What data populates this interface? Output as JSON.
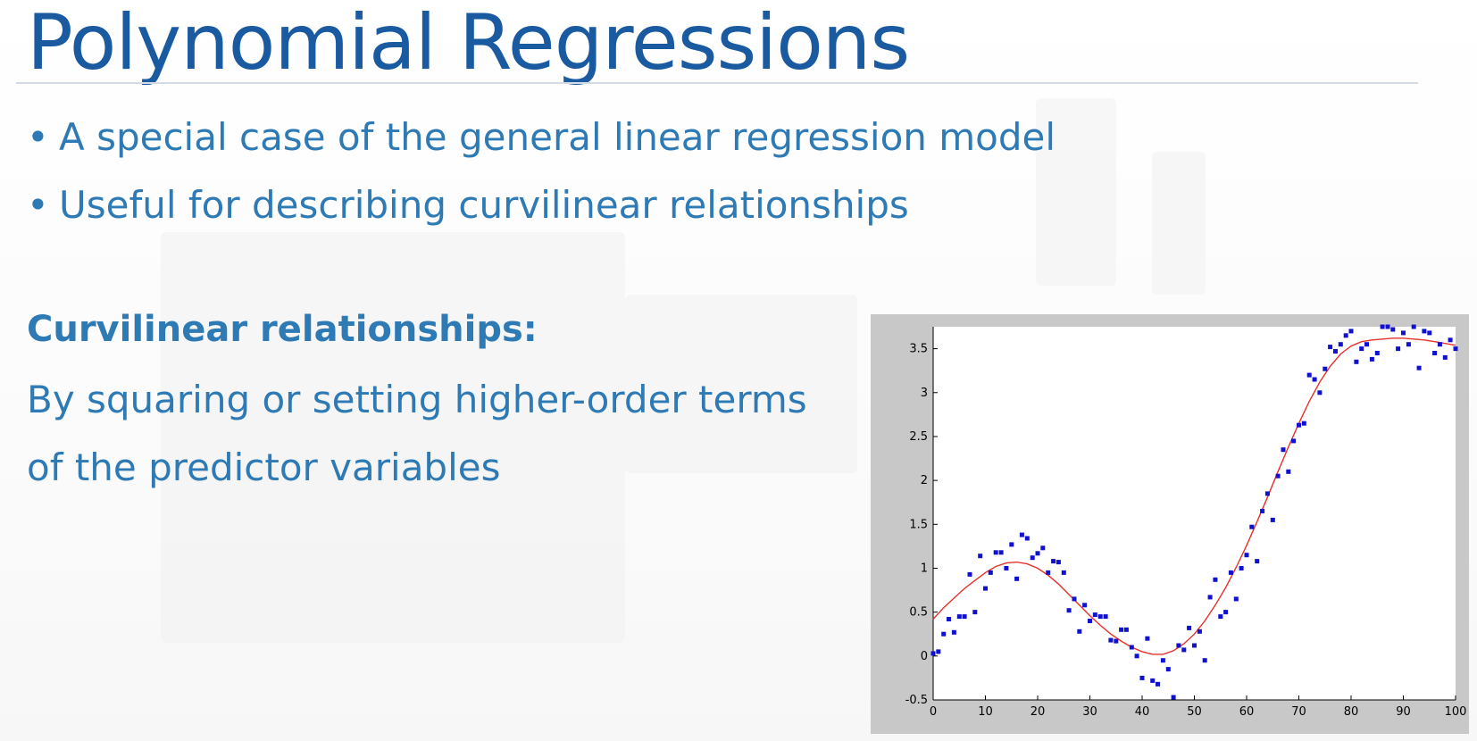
{
  "slide": {
    "title": "Polynomial Regressions",
    "bullets": [
      "A special case of the general linear regression model",
      "Useful for describing curvilinear relationships"
    ],
    "subheading": "Curvilinear relationships:",
    "body": "By squaring or setting higher-order terms of the predictor variables"
  },
  "colors": {
    "title": "#1a5aa0",
    "text": "#2d7ab5",
    "points": "#1010d0",
    "fit_line": "#e8302a",
    "plot_frame": "#c8c8c8"
  },
  "chart_data": {
    "type": "scatter",
    "title": "",
    "xlabel": "",
    "ylabel": "",
    "xlim": [
      0,
      100
    ],
    "ylim": [
      -0.5,
      3.75
    ],
    "x_ticks": [
      0,
      10,
      20,
      30,
      40,
      50,
      60,
      70,
      80,
      90,
      100
    ],
    "y_ticks": [
      -0.5,
      0,
      0.5,
      1,
      1.5,
      2,
      2.5,
      3,
      3.5
    ],
    "x_tick_labels": [
      "0",
      "10",
      "20",
      "30",
      "40",
      "50",
      "60",
      "70",
      "80",
      "90",
      "100"
    ],
    "y_tick_labels": [
      "-0.5",
      "0",
      "0.5",
      "1",
      "1.5",
      "2",
      "2.5",
      "3",
      "3.5"
    ],
    "grid": false,
    "series": [
      {
        "kind": "points",
        "color": "#1010d0",
        "x": [
          0,
          1,
          2,
          3,
          4,
          5,
          6,
          7,
          8,
          9,
          10,
          11,
          12,
          13,
          14,
          15,
          16,
          17,
          18,
          19,
          20,
          21,
          22,
          23,
          24,
          25,
          26,
          27,
          28,
          29,
          30,
          31,
          32,
          33,
          34,
          35,
          36,
          37,
          38,
          39,
          40,
          41,
          42,
          43,
          44,
          45,
          46,
          47,
          48,
          49,
          50,
          51,
          52,
          53,
          54,
          55,
          56,
          57,
          58,
          59,
          60,
          61,
          62,
          63,
          64,
          65,
          66,
          67,
          68,
          69,
          70,
          71,
          72,
          73,
          74,
          75,
          76,
          77,
          78,
          79,
          80,
          81,
          82,
          83,
          84,
          85,
          86,
          87,
          88,
          89,
          90,
          91,
          92,
          93,
          94,
          95,
          96,
          97,
          98,
          99,
          100
        ],
        "y": [
          0.03,
          0.05,
          0.25,
          0.42,
          0.27,
          0.45,
          0.45,
          0.93,
          0.5,
          1.14,
          0.77,
          0.95,
          1.18,
          1.18,
          1.0,
          1.27,
          0.88,
          1.38,
          1.34,
          1.12,
          1.17,
          1.23,
          0.95,
          1.08,
          1.07,
          0.95,
          0.52,
          0.65,
          0.28,
          0.58,
          0.4,
          0.47,
          0.45,
          0.45,
          0.18,
          0.17,
          0.3,
          0.3,
          0.1,
          0.0,
          -0.25,
          0.2,
          -0.28,
          -0.32,
          -0.05,
          -0.15,
          -0.47,
          0.12,
          0.07,
          0.32,
          0.12,
          0.28,
          -0.05,
          0.67,
          0.87,
          0.45,
          0.5,
          0.95,
          0.65,
          1.0,
          1.15,
          1.47,
          1.08,
          1.65,
          1.85,
          1.55,
          2.05,
          2.35,
          2.1,
          2.45,
          2.63,
          2.65,
          3.2,
          3.15,
          3.0,
          3.27,
          3.52,
          3.47,
          3.55,
          3.65,
          3.7,
          3.35,
          3.5,
          3.55,
          3.38,
          3.45,
          3.75,
          3.75,
          3.72,
          3.5,
          3.68,
          3.55,
          3.75,
          3.28,
          3.7,
          3.68,
          3.45,
          3.55,
          3.4,
          3.6,
          3.5
        ]
      },
      {
        "kind": "line",
        "color": "#e8302a",
        "x": [
          0,
          2,
          4,
          6,
          8,
          10,
          12,
          14,
          16,
          18,
          20,
          22,
          24,
          26,
          28,
          30,
          32,
          34,
          36,
          38,
          40,
          42,
          44,
          46,
          48,
          50,
          52,
          54,
          56,
          58,
          60,
          62,
          64,
          66,
          68,
          70,
          72,
          74,
          76,
          78,
          80,
          82,
          84,
          86,
          88,
          90,
          92,
          94,
          96,
          98,
          100
        ],
        "y": [
          0.42,
          0.55,
          0.66,
          0.77,
          0.86,
          0.95,
          1.02,
          1.06,
          1.07,
          1.05,
          1.0,
          0.92,
          0.82,
          0.7,
          0.58,
          0.46,
          0.35,
          0.25,
          0.17,
          0.1,
          0.05,
          0.02,
          0.02,
          0.06,
          0.14,
          0.25,
          0.4,
          0.58,
          0.78,
          1.01,
          1.26,
          1.53,
          1.81,
          2.1,
          2.38,
          2.65,
          2.9,
          3.12,
          3.3,
          3.44,
          3.53,
          3.58,
          3.6,
          3.61,
          3.62,
          3.62,
          3.61,
          3.6,
          3.58,
          3.56,
          3.54
        ]
      }
    ]
  }
}
